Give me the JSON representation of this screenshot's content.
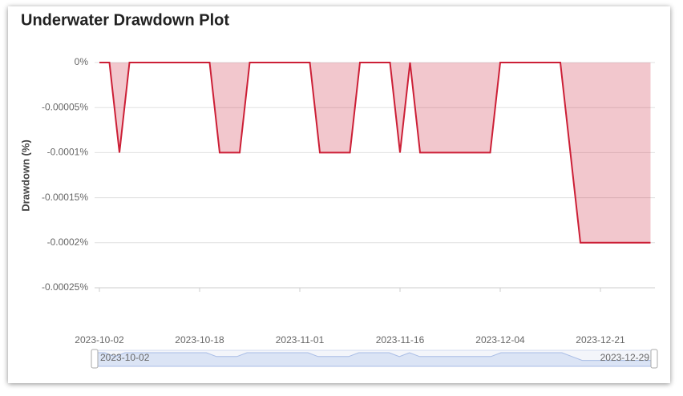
{
  "chart_data": {
    "type": "area_line",
    "title": "Underwater Drawdown Plot",
    "y_label": "Drawdown (%)",
    "color": "#cc1f36",
    "categories": [
      "2023-10-02",
      null,
      null,
      null,
      null,
      null,
      null,
      null,
      null,
      null,
      "2023-10-18",
      null,
      null,
      null,
      null,
      null,
      null,
      null,
      null,
      null,
      "2023-11-01",
      null,
      null,
      null,
      null,
      null,
      null,
      null,
      null,
      null,
      "2023-11-16",
      null,
      null,
      null,
      null,
      null,
      null,
      null,
      null,
      null,
      "2023-12-04",
      null,
      null,
      null,
      null,
      null,
      null,
      null,
      null,
      null,
      "2023-12-21",
      null,
      null,
      null,
      null,
      "2023-12-29"
    ],
    "values": [
      0,
      0,
      -0.0001,
      0,
      0,
      0,
      0,
      0,
      0,
      0,
      0,
      0,
      -0.0001,
      -0.0001,
      -0.0001,
      0,
      0,
      0,
      0,
      0,
      0,
      0,
      -0.0001,
      -0.0001,
      -0.0001,
      -0.0001,
      0,
      0,
      0,
      0,
      -0.0001,
      0,
      -0.0001,
      -0.0001,
      -0.0001,
      -0.0001,
      -0.0001,
      -0.0001,
      -0.0001,
      -0.0001,
      0,
      0,
      0,
      0,
      0,
      0,
      0,
      -0.0001,
      -0.0002,
      -0.0002,
      -0.0002,
      -0.0002,
      -0.0002,
      -0.0002,
      -0.0002,
      -0.0002
    ],
    "ylim": [
      -0.00025,
      0
    ],
    "yticks": [
      {
        "value": 0,
        "label": "0%"
      },
      {
        "value": -5e-05,
        "label": "-0.00005%"
      },
      {
        "value": -0.0001,
        "label": "-0.0001%"
      },
      {
        "value": -0.00015,
        "label": "-0.00015%"
      },
      {
        "value": -0.0002,
        "label": "-0.0002%"
      },
      {
        "value": -0.00025,
        "label": "-0.00025%"
      }
    ],
    "grid": true
  }
}
